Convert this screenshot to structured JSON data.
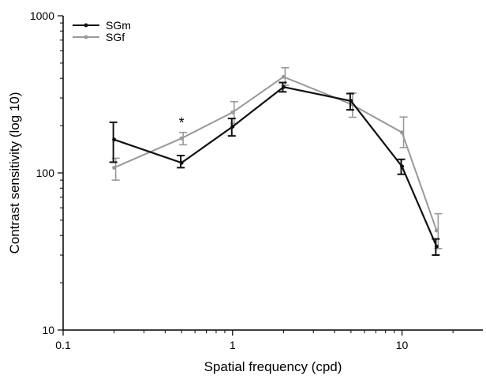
{
  "chart_data": {
    "type": "line",
    "title": "",
    "xlabel": "Spatial frequency (cpd)",
    "ylabel": "Contrast sensitivity (log 10)",
    "xscale": "log",
    "yscale": "log",
    "xlim": [
      0.1,
      30
    ],
    "ylim": [
      10,
      1000
    ],
    "x_ticks": [
      0.1,
      1,
      10
    ],
    "x_tick_labels": [
      "0.1",
      "1",
      "10"
    ],
    "y_ticks": [
      10,
      100,
      1000
    ],
    "y_tick_labels": [
      "10",
      "100",
      "1000"
    ],
    "grid": false,
    "legend_position": "top-left",
    "series": [
      {
        "name": "SGm",
        "color": "#111111",
        "x": [
          0.2,
          0.5,
          1,
          2,
          5,
          10,
          16
        ],
        "y": [
          163,
          116,
          197,
          352,
          287,
          110,
          34
        ],
        "err_low": [
          117,
          108,
          172,
          328,
          252,
          98,
          30
        ],
        "err_high": [
          210,
          129,
          222,
          376,
          320,
          122,
          38
        ]
      },
      {
        "name": "SGf",
        "color": "#999999",
        "x": [
          0.2,
          0.5,
          1,
          2,
          5,
          10,
          16
        ],
        "y": [
          108,
          166,
          243,
          409,
          274,
          181,
          43
        ],
        "err_low": [
          90,
          151,
          206,
          361,
          226,
          145,
          33
        ],
        "err_high": [
          124,
          181,
          284,
          467,
          322,
          227,
          55
        ]
      }
    ],
    "annotations": [
      {
        "text": "*",
        "x": 0.5
      }
    ]
  }
}
